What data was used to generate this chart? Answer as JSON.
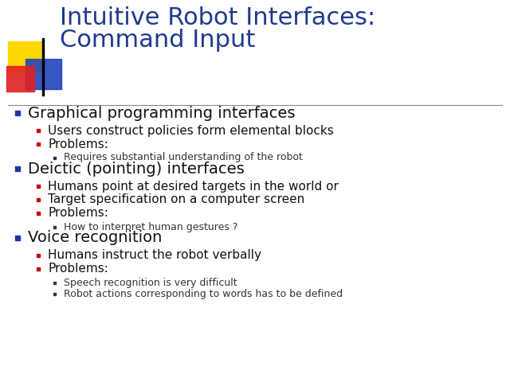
{
  "title_line1": "Intuitive Robot Interfaces:",
  "title_line2": "Command Input",
  "title_color": "#1F3A8F",
  "bg_color": "#FFFFFF",
  "bullet_color_l1": "#2233AA",
  "bullet_color_l2": "#CC0000",
  "bullet_color_l3": "#333366",
  "content": [
    {
      "level": 1,
      "text": "Graphical programming interfaces",
      "size": 14
    },
    {
      "level": 2,
      "text": "Users construct policies form elemental blocks",
      "size": 11
    },
    {
      "level": 2,
      "text": "Problems:",
      "size": 11
    },
    {
      "level": 3,
      "text": "Requires substantial understanding of the robot",
      "size": 9
    },
    {
      "level": 1,
      "text": "Deictic (pointing) interfaces",
      "size": 14
    },
    {
      "level": 2,
      "text": "Humans point at desired targets in the world or",
      "size": 11
    },
    {
      "level": 2,
      "text": "Target specification on a computer screen",
      "size": 11
    },
    {
      "level": 2,
      "text": "Problems:",
      "size": 11
    },
    {
      "level": 3,
      "text": "How to interpret human gestures ?",
      "size": 9
    },
    {
      "level": 1,
      "text": "Voice recognition",
      "size": 14
    },
    {
      "level": 2,
      "text": "Humans instruct the robot verbally",
      "size": 11
    },
    {
      "level": 2,
      "text": "Problems:",
      "size": 11
    },
    {
      "level": 3,
      "text": "Speech recognition is very difficult",
      "size": 9
    },
    {
      "level": 3,
      "text": "Robot actions corresponding to words has to be defined",
      "size": 9
    }
  ],
  "title_fontsize": 22,
  "line_color": "#888888",
  "deco_yellow": "#FFD700",
  "deco_blue": "#2244BB",
  "deco_red": "#DD2222",
  "text_color_l1": "#111111",
  "text_color_l2": "#111111",
  "text_color_l3": "#333333"
}
